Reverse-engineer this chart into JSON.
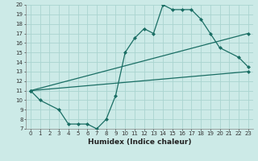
{
  "background_color": "#cceae7",
  "grid_color": "#aad4d0",
  "line_color": "#1a6e64",
  "xlabel": "Humidex (Indice chaleur)",
  "xlim": [
    -0.5,
    23.5
  ],
  "ylim": [
    7,
    20
  ],
  "xticks": [
    0,
    1,
    2,
    3,
    4,
    5,
    6,
    7,
    8,
    9,
    10,
    11,
    12,
    13,
    14,
    15,
    16,
    17,
    18,
    19,
    20,
    21,
    22,
    23
  ],
  "yticks": [
    7,
    8,
    9,
    10,
    11,
    12,
    13,
    14,
    15,
    16,
    17,
    18,
    19,
    20
  ],
  "line1_x": [
    0,
    1,
    3,
    4,
    5,
    6,
    7,
    8,
    9,
    10,
    11,
    12,
    13,
    14,
    15,
    16,
    17,
    18,
    19,
    20,
    22,
    23
  ],
  "line1_y": [
    11,
    10,
    9,
    7.5,
    7.5,
    7.5,
    7,
    8,
    10.5,
    15,
    16.5,
    17.5,
    17,
    20,
    19.5,
    19.5,
    19.5,
    18.5,
    17,
    15.5,
    14.5,
    13.5
  ],
  "line2_x": [
    0,
    23
  ],
  "line2_y": [
    11,
    13
  ],
  "line3_x": [
    0,
    23
  ],
  "line3_y": [
    11,
    17
  ],
  "marker": "D",
  "markersize": 2,
  "linewidth": 0.9,
  "tick_fontsize": 5,
  "label_fontsize": 6.5
}
